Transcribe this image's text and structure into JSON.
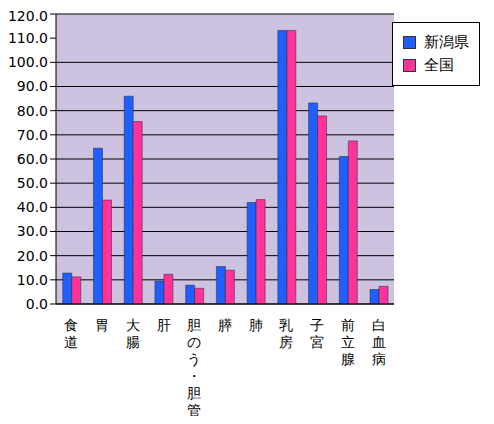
{
  "chart_data": {
    "type": "bar",
    "categories": [
      "食道",
      "胃",
      "大腸",
      "肝",
      "胆のう・胆管",
      "膵",
      "肺",
      "乳房",
      "子宮",
      "前立腺",
      "白血病"
    ],
    "series": [
      {
        "name": "新潟県",
        "color": "#1f5fff",
        "values": [
          12.8,
          64.5,
          86.0,
          9.5,
          7.8,
          15.5,
          42.0,
          113.2,
          83.2,
          61.0,
          6.0
        ]
      },
      {
        "name": "全国",
        "color": "#ff3399",
        "values": [
          11.2,
          43.0,
          75.5,
          12.3,
          6.5,
          14.0,
          43.2,
          113.2,
          77.8,
          67.5,
          7.3
        ]
      }
    ],
    "ylim": [
      0,
      120
    ],
    "yticks": [
      {
        "value": 0,
        "label": "0.0"
      },
      {
        "value": 10,
        "label": "10.0"
      },
      {
        "value": 20,
        "label": "20.0"
      },
      {
        "value": 30,
        "label": "30.0"
      },
      {
        "value": 40,
        "label": "40.0"
      },
      {
        "value": 50,
        "label": "50.0"
      },
      {
        "value": 60,
        "label": "60.0"
      },
      {
        "value": 70,
        "label": "70.0"
      },
      {
        "value": 80,
        "label": "80.0"
      },
      {
        "value": 90,
        "label": "90.0"
      },
      {
        "value": 100,
        "label": "100.0"
      },
      {
        "value": 110,
        "label": "110.0"
      },
      {
        "value": 120,
        "label": "120.0"
      }
    ],
    "grid": true,
    "legend": "upper right"
  }
}
